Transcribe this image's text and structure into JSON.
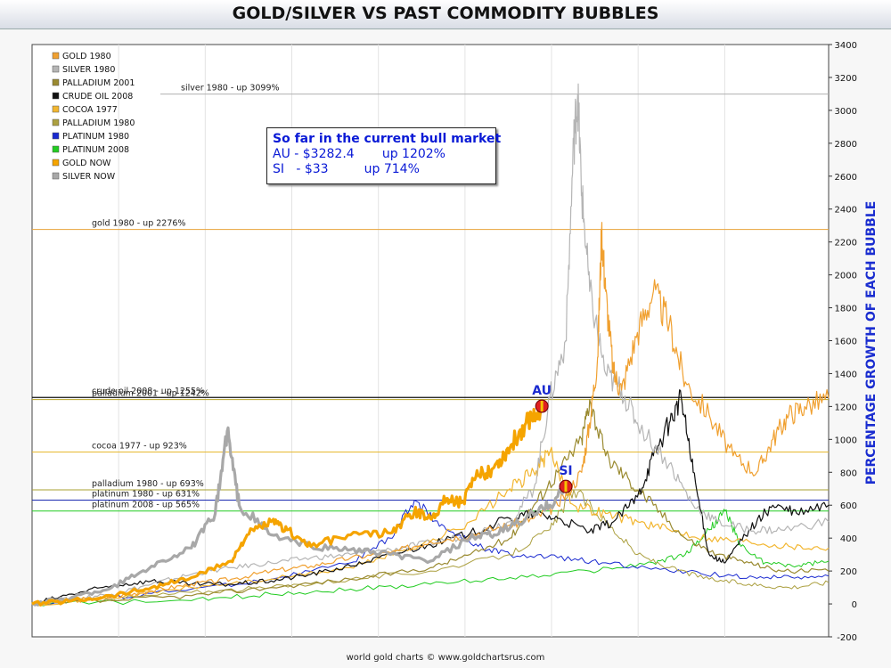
{
  "title": "GOLD/SILVER VS PAST COMMODITY BUBBLES",
  "footer": "world gold charts © www.goldchartsrus.com",
  "annotation_box": {
    "line1": "So far in the current bull market",
    "line2": "AU - $3282.4       up 1202%",
    "line3": "SI   - $33         up 714%"
  },
  "markers": {
    "au_label": "AU",
    "si_label": "SI"
  },
  "chart_data": {
    "type": "line",
    "ylabel": "PERCENTAGE GROWTH OF EACH BUBBLE",
    "ylim": [
      -200,
      3400
    ],
    "yticks": [
      -200,
      0,
      200,
      400,
      600,
      800,
      1000,
      1200,
      1400,
      1600,
      1800,
      2000,
      2200,
      2400,
      2600,
      2800,
      3000,
      3200,
      3400
    ],
    "grid": "vertical",
    "legend_position": "top-left",
    "reference_lines": [
      {
        "label": "silver 1980 - up 3099%",
        "value": 3099,
        "color": "#b0b0b0"
      },
      {
        "label": "gold 1980 - up 2276%",
        "value": 2276,
        "color": "#e8a33a"
      },
      {
        "label": "crude oil 2008 - up 1255%",
        "value": 1255,
        "color": "#111111"
      },
      {
        "label": "palladium 2001 - up 1242%",
        "value": 1242,
        "color": "#b8a42a"
      },
      {
        "label": "cocoa 1977 - up 923%",
        "value": 923,
        "color": "#e6b830"
      },
      {
        "label": "palladium 1980 - up 693%",
        "value": 693,
        "color": "#a8a030"
      },
      {
        "label": "platinum 1980 - up 631%",
        "value": 631,
        "color": "#1a2ab0"
      },
      {
        "label": "platinum 2008 - up 565%",
        "value": 565,
        "color": "#22cc22"
      }
    ],
    "series": [
      {
        "name": "GOLD 1980",
        "color": "#f0a030",
        "width": 1.2,
        "values": [
          [
            0,
            0
          ],
          [
            0.05,
            20
          ],
          [
            0.1,
            40
          ],
          [
            0.15,
            80
          ],
          [
            0.2,
            120
          ],
          [
            0.25,
            150
          ],
          [
            0.3,
            200
          ],
          [
            0.35,
            230
          ],
          [
            0.4,
            280
          ],
          [
            0.45,
            310
          ],
          [
            0.5,
            380
          ],
          [
            0.55,
            420
          ],
          [
            0.6,
            480
          ],
          [
            0.63,
            520
          ],
          [
            0.66,
            600
          ],
          [
            0.69,
            800
          ],
          [
            0.7,
            1100
          ],
          [
            0.71,
            1500
          ],
          [
            0.715,
            2276
          ],
          [
            0.72,
            1900
          ],
          [
            0.73,
            1400
          ],
          [
            0.74,
            1300
          ],
          [
            0.76,
            1650
          ],
          [
            0.78,
            1900
          ],
          [
            0.8,
            1700
          ],
          [
            0.82,
            1350
          ],
          [
            0.85,
            1150
          ],
          [
            0.88,
            900
          ],
          [
            0.91,
            800
          ],
          [
            0.93,
            1000
          ],
          [
            0.95,
            1150
          ],
          [
            0.97,
            1200
          ],
          [
            1,
            1250
          ]
        ]
      },
      {
        "name": "SILVER 1980",
        "color": "#b5b5b5",
        "width": 1.2,
        "values": [
          [
            0,
            0
          ],
          [
            0.05,
            30
          ],
          [
            0.1,
            60
          ],
          [
            0.15,
            120
          ],
          [
            0.2,
            180
          ],
          [
            0.25,
            220
          ],
          [
            0.3,
            250
          ],
          [
            0.35,
            280
          ],
          [
            0.4,
            300
          ],
          [
            0.45,
            330
          ],
          [
            0.5,
            370
          ],
          [
            0.55,
            420
          ],
          [
            0.6,
            500
          ],
          [
            0.63,
            700
          ],
          [
            0.65,
            1250
          ],
          [
            0.67,
            1600
          ],
          [
            0.68,
            2800
          ],
          [
            0.685,
            3099
          ],
          [
            0.69,
            2500
          ],
          [
            0.7,
            1900
          ],
          [
            0.72,
            1400
          ],
          [
            0.74,
            1300
          ],
          [
            0.76,
            1100
          ],
          [
            0.8,
            850
          ],
          [
            0.83,
            600
          ],
          [
            0.86,
            500
          ],
          [
            0.9,
            450
          ],
          [
            0.94,
            450
          ],
          [
            1,
            500
          ]
        ]
      },
      {
        "name": "PALLADIUM 2001",
        "color": "#9a8a30",
        "width": 1.2,
        "values": [
          [
            0,
            0
          ],
          [
            0.1,
            20
          ],
          [
            0.2,
            50
          ],
          [
            0.3,
            100
          ],
          [
            0.4,
            150
          ],
          [
            0.5,
            220
          ],
          [
            0.55,
            300
          ],
          [
            0.6,
            400
          ],
          [
            0.63,
            600
          ],
          [
            0.66,
            800
          ],
          [
            0.69,
            1000
          ],
          [
            0.7,
            1242
          ],
          [
            0.72,
            900
          ],
          [
            0.75,
            750
          ],
          [
            0.78,
            600
          ],
          [
            0.82,
            400
          ],
          [
            0.86,
            300
          ],
          [
            0.9,
            250
          ],
          [
            0.94,
            200
          ],
          [
            1,
            200
          ]
        ]
      },
      {
        "name": "CRUDE OIL 2008",
        "color": "#111111",
        "width": 1.2,
        "values": [
          [
            0,
            0
          ],
          [
            0.05,
            60
          ],
          [
            0.1,
            110
          ],
          [
            0.15,
            140
          ],
          [
            0.2,
            120
          ],
          [
            0.25,
            120
          ],
          [
            0.3,
            140
          ],
          [
            0.35,
            180
          ],
          [
            0.4,
            230
          ],
          [
            0.45,
            300
          ],
          [
            0.5,
            360
          ],
          [
            0.55,
            430
          ],
          [
            0.6,
            520
          ],
          [
            0.63,
            550
          ],
          [
            0.66,
            520
          ],
          [
            0.7,
            440
          ],
          [
            0.73,
            500
          ],
          [
            0.76,
            650
          ],
          [
            0.78,
            900
          ],
          [
            0.8,
            1100
          ],
          [
            0.815,
            1255
          ],
          [
            0.83,
            800
          ],
          [
            0.85,
            300
          ],
          [
            0.87,
            250
          ],
          [
            0.9,
            450
          ],
          [
            0.93,
            600
          ],
          [
            0.96,
            550
          ],
          [
            1,
            600
          ]
        ]
      },
      {
        "name": "COCOA 1977",
        "color": "#f2b630",
        "width": 1.2,
        "values": [
          [
            0,
            0
          ],
          [
            0.1,
            40
          ],
          [
            0.2,
            100
          ],
          [
            0.3,
            150
          ],
          [
            0.4,
            220
          ],
          [
            0.45,
            300
          ],
          [
            0.5,
            380
          ],
          [
            0.55,
            500
          ],
          [
            0.6,
            700
          ],
          [
            0.63,
            800
          ],
          [
            0.65,
            923
          ],
          [
            0.68,
            600
          ],
          [
            0.72,
            550
          ],
          [
            0.76,
            500
          ],
          [
            0.8,
            450
          ],
          [
            0.85,
            400
          ],
          [
            0.9,
            380
          ],
          [
            0.95,
            350
          ],
          [
            1,
            340
          ]
        ]
      },
      {
        "name": "PALLADIUM 1980",
        "color": "#aca040",
        "width": 1.0,
        "values": [
          [
            0,
            0
          ],
          [
            0.1,
            30
          ],
          [
            0.2,
            70
          ],
          [
            0.3,
            100
          ],
          [
            0.4,
            150
          ],
          [
            0.5,
            200
          ],
          [
            0.6,
            300
          ],
          [
            0.65,
            450
          ],
          [
            0.68,
            693
          ],
          [
            0.72,
            500
          ],
          [
            0.76,
            300
          ],
          [
            0.8,
            220
          ],
          [
            0.85,
            150
          ],
          [
            0.9,
            120
          ],
          [
            0.95,
            100
          ],
          [
            1,
            130
          ]
        ]
      },
      {
        "name": "PLATINUM 1980",
        "color": "#1a2ad0",
        "width": 1.0,
        "values": [
          [
            0,
            0
          ],
          [
            0.1,
            40
          ],
          [
            0.2,
            90
          ],
          [
            0.3,
            150
          ],
          [
            0.4,
            250
          ],
          [
            0.45,
            400
          ],
          [
            0.48,
            631
          ],
          [
            0.52,
            450
          ],
          [
            0.56,
            350
          ],
          [
            0.6,
            300
          ],
          [
            0.66,
            280
          ],
          [
            0.72,
            250
          ],
          [
            0.8,
            200
          ],
          [
            0.88,
            170
          ],
          [
            0.94,
            160
          ],
          [
            1,
            170
          ]
        ]
      },
      {
        "name": "PLATINUM 2008",
        "color": "#22cc22",
        "width": 1.0,
        "values": [
          [
            0,
            0
          ],
          [
            0.2,
            20
          ],
          [
            0.3,
            60
          ],
          [
            0.4,
            90
          ],
          [
            0.5,
            120
          ],
          [
            0.6,
            160
          ],
          [
            0.7,
            200
          ],
          [
            0.78,
            250
          ],
          [
            0.82,
            300
          ],
          [
            0.85,
            450
          ],
          [
            0.87,
            565
          ],
          [
            0.89,
            350
          ],
          [
            0.92,
            250
          ],
          [
            0.96,
            230
          ],
          [
            1,
            260
          ]
        ]
      },
      {
        "name": "GOLD NOW",
        "color": "#f5a400",
        "width": 3.2,
        "values": [
          [
            0,
            0
          ],
          [
            0.05,
            20
          ],
          [
            0.1,
            50
          ],
          [
            0.15,
            100
          ],
          [
            0.2,
            160
          ],
          [
            0.25,
            260
          ],
          [
            0.27,
            420
          ],
          [
            0.3,
            500
          ],
          [
            0.32,
            450
          ],
          [
            0.35,
            350
          ],
          [
            0.4,
            420
          ],
          [
            0.45,
            430
          ],
          [
            0.48,
            560
          ],
          [
            0.5,
            520
          ],
          [
            0.52,
            640
          ],
          [
            0.54,
            620
          ],
          [
            0.56,
            780
          ],
          [
            0.58,
            830
          ],
          [
            0.6,
            950
          ],
          [
            0.62,
            1100
          ],
          [
            0.64,
            1202
          ]
        ]
      },
      {
        "name": "SILVER NOW",
        "color": "#a8a8a8",
        "width": 3.2,
        "values": [
          [
            0,
            0
          ],
          [
            0.05,
            40
          ],
          [
            0.1,
            100
          ],
          [
            0.15,
            230
          ],
          [
            0.2,
            340
          ],
          [
            0.23,
            550
          ],
          [
            0.245,
            1050
          ],
          [
            0.26,
            600
          ],
          [
            0.3,
            420
          ],
          [
            0.35,
            350
          ],
          [
            0.4,
            330
          ],
          [
            0.45,
            300
          ],
          [
            0.5,
            260
          ],
          [
            0.55,
            400
          ],
          [
            0.58,
            420
          ],
          [
            0.62,
            520
          ],
          [
            0.65,
            600
          ],
          [
            0.67,
            714
          ]
        ]
      }
    ],
    "marker_points": [
      {
        "label": "AU",
        "x": 0.64,
        "y": 1202
      },
      {
        "label": "SI",
        "x": 0.67,
        "y": 714
      }
    ]
  }
}
